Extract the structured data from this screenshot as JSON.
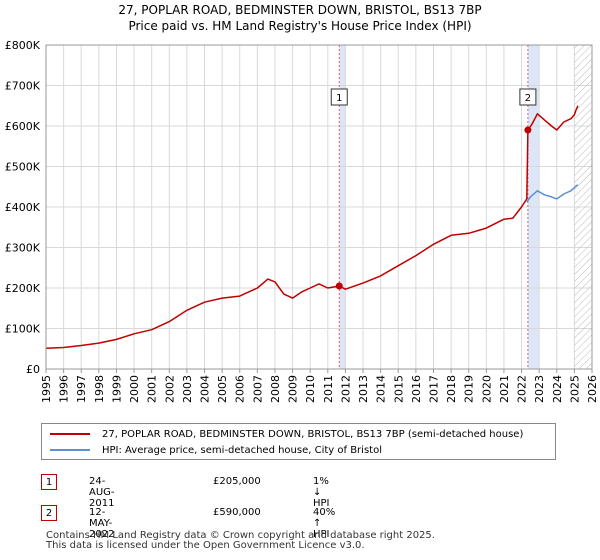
{
  "title_line1": "27, POPLAR ROAD, BEDMINSTER DOWN, BRISTOL, BS13 7BP",
  "title_line2": "Price paid vs. HM Land Registry's House Price Index (HPI)",
  "chart_data": {
    "type": "line",
    "title": "27, POPLAR ROAD, BEDMINSTER DOWN, BRISTOL, BS13 7BP — Price paid vs. HM Land Registry's House Price Index (HPI)",
    "xlabel": "",
    "ylabel": "",
    "xlim": [
      1995,
      2026
    ],
    "ylim": [
      0,
      800000
    ],
    "y_ticks": [
      {
        "value": 0,
        "label": "£0"
      },
      {
        "value": 100000,
        "label": "£100K"
      },
      {
        "value": 200000,
        "label": "£200K"
      },
      {
        "value": 300000,
        "label": "£300K"
      },
      {
        "value": 400000,
        "label": "£400K"
      },
      {
        "value": 500000,
        "label": "£500K"
      },
      {
        "value": 600000,
        "label": "£600K"
      },
      {
        "value": 700000,
        "label": "£700K"
      },
      {
        "value": 800000,
        "label": "£800K"
      }
    ],
    "x_ticks": [
      1995,
      1996,
      1997,
      1998,
      1999,
      2000,
      2001,
      2002,
      2003,
      2004,
      2005,
      2006,
      2007,
      2008,
      2009,
      2010,
      2011,
      2012,
      2013,
      2014,
      2015,
      2016,
      2017,
      2018,
      2019,
      2020,
      2021,
      2022,
      2023,
      2024,
      2025,
      2026
    ],
    "grid": true,
    "future_hatch_from": 2025.0,
    "highlight_spans": [
      [
        2011.65,
        2012.0
      ],
      [
        2022.36,
        2023.0
      ]
    ],
    "series": [
      {
        "name": "27, POPLAR ROAD, BEDMINSTER DOWN, BRISTOL, BS13 7BP (semi-detached house)",
        "color": "#c00000",
        "x": [
          1995.0,
          1996.0,
          1997.0,
          1998.0,
          1999.0,
          2000.0,
          2001.0,
          2002.0,
          2003.0,
          2003.5,
          2004.0,
          2005.0,
          2006.0,
          2007.0,
          2007.6,
          2008.0,
          2008.5,
          2009.0,
          2009.5,
          2010.0,
          2010.5,
          2011.0,
          2011.65,
          2012.0,
          2013.0,
          2014.0,
          2015.0,
          2016.0,
          2017.0,
          2018.0,
          2019.0,
          2020.0,
          2021.0,
          2021.5,
          2022.0,
          2022.3,
          2022.36,
          2022.6,
          2022.9,
          2023.3,
          2023.7,
          2024.0,
          2024.4,
          2024.8,
          2025.0,
          2025.1,
          2025.2
        ],
        "y": [
          51000,
          53000,
          58000,
          64000,
          73000,
          87000,
          97000,
          117000,
          145000,
          155000,
          165000,
          175000,
          180000,
          200000,
          222000,
          215000,
          185000,
          175000,
          190000,
          200000,
          210000,
          200000,
          205000,
          197000,
          212000,
          230000,
          255000,
          280000,
          308000,
          330000,
          335000,
          348000,
          370000,
          372000,
          400000,
          420000,
          590000,
          605000,
          630000,
          615000,
          600000,
          590000,
          610000,
          618000,
          628000,
          640000,
          650000
        ]
      },
      {
        "name": "HPI: Average price, semi-detached house, City of Bristol",
        "color": "#5b8fd6",
        "x": [
          2022.3,
          2022.5,
          2022.9,
          2023.3,
          2023.7,
          2024.0,
          2024.4,
          2024.8,
          2025.0,
          2025.1,
          2025.2
        ],
        "y": [
          412000,
          425000,
          440000,
          430000,
          425000,
          420000,
          432000,
          440000,
          448000,
          452000,
          455000
        ]
      }
    ],
    "annotations": [
      {
        "label": "1",
        "x": 2011.65,
        "y": 205000
      },
      {
        "label": "2",
        "x": 2022.36,
        "y": 590000
      }
    ]
  },
  "legend": {
    "price_paid": "27, POPLAR ROAD, BEDMINSTER DOWN, BRISTOL, BS13 7BP (semi-detached house)",
    "hpi": "HPI: Average price, semi-detached house, City of Bristol"
  },
  "transactions": [
    {
      "num": "1",
      "date": "24-AUG-2011",
      "price": "£205,000",
      "hpi": "1% ↓ HPI"
    },
    {
      "num": "2",
      "date": "12-MAY-2022",
      "price": "£590,000",
      "hpi": "40% ↑ HPI"
    }
  ],
  "footer": {
    "line1": "Contains HM Land Registry data © Crown copyright and database right 2025.",
    "line2": "This data is licensed under the Open Government Licence v3.0."
  }
}
